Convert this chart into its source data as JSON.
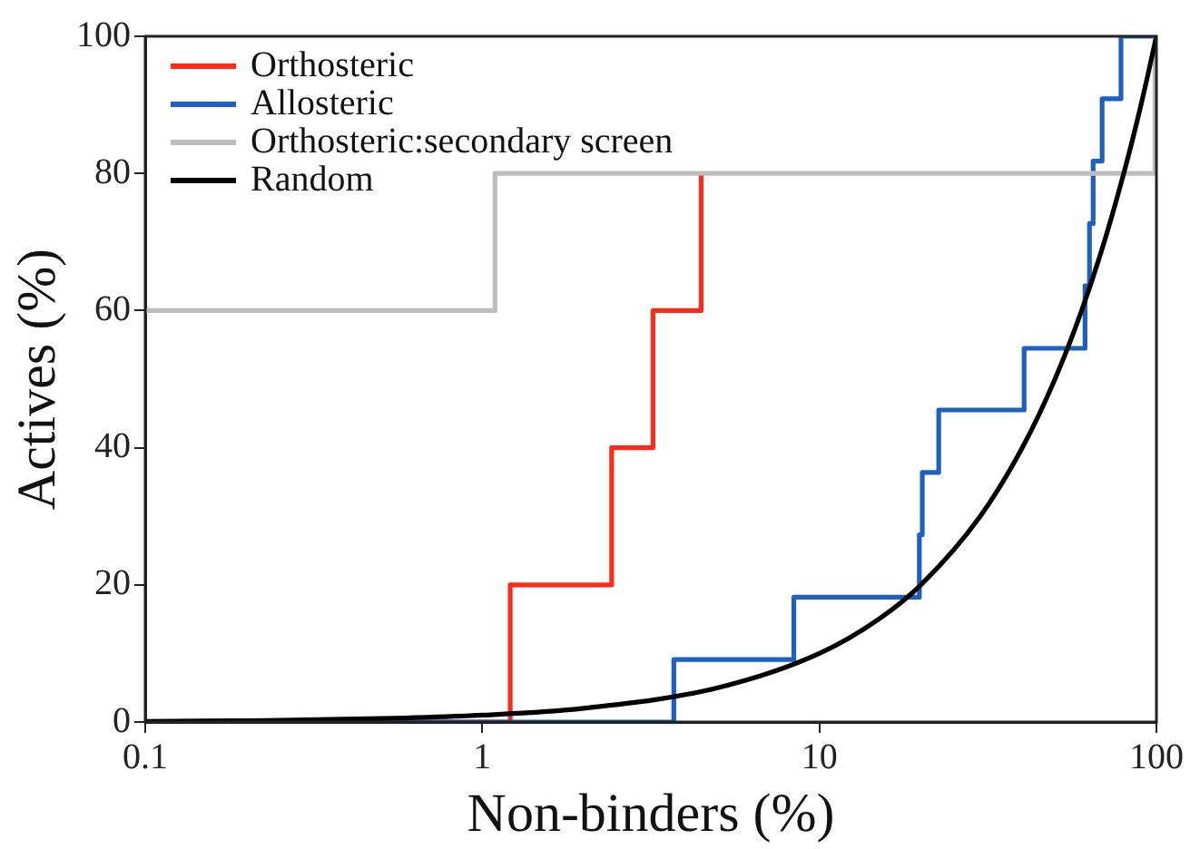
{
  "chart_data": {
    "type": "step",
    "xlabel": "Non-binders (%)",
    "ylabel": "Actives (%)",
    "log": "x",
    "xlim": [
      0.1,
      100
    ],
    "xticks": [
      0.1,
      1,
      10,
      100
    ],
    "ylim": [
      0,
      100
    ],
    "yticks": [
      0,
      20,
      40,
      60,
      80,
      100
    ],
    "grid": false,
    "legend": "top left",
    "marker": "none",
    "line_style": "solid",
    "series": [
      {
        "name": "Orthosteric",
        "color": "#ff2a1a",
        "x": [
          0.1,
          1.21,
          2.42,
          3.21,
          4.46
        ],
        "values": [
          0,
          20,
          40,
          60,
          80
        ]
      },
      {
        "name": "Allosteric",
        "color": "#1f5fc0",
        "x": [
          0.1,
          3.7,
          8.4,
          19.8,
          20.2,
          22.6,
          40.5,
          61.4,
          63.3,
          64.9,
          69,
          78.5,
          100
        ],
        "values": [
          0,
          9.1,
          18.2,
          27.3,
          36.4,
          45.5,
          54.5,
          63.6,
          72.7,
          81.8,
          90.9,
          100,
          100
        ]
      },
      {
        "name": "Orthosteric:secondary screen",
        "color": "#bdbdbd",
        "x": [
          0.1,
          1.09,
          99,
          99
        ],
        "values": [
          60,
          80,
          80,
          100
        ]
      },
      {
        "name": "Random",
        "type": "line",
        "color": "#000000",
        "x": [
          0.1,
          0.2,
          0.5,
          1,
          2,
          5,
          10,
          15,
          20,
          30,
          40,
          50,
          60,
          70,
          80,
          90,
          100
        ],
        "values": [
          0.1,
          0.2,
          0.5,
          1,
          2,
          5,
          10,
          15,
          20,
          30,
          40,
          50,
          60,
          70,
          80,
          90,
          100
        ]
      }
    ]
  }
}
